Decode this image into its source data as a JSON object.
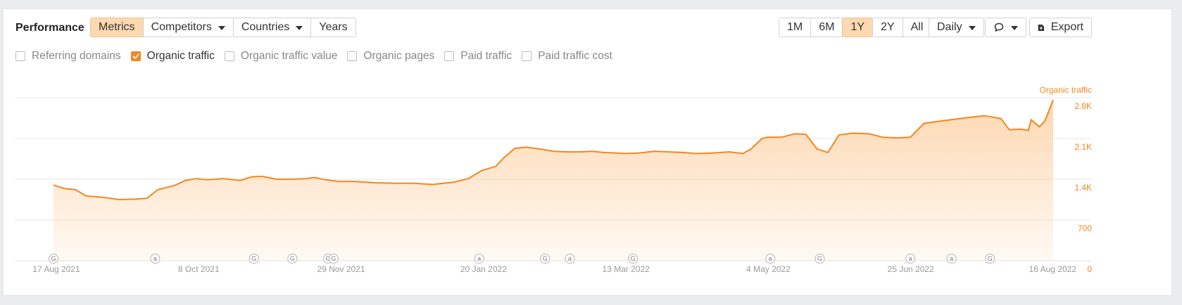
{
  "header": {
    "title": "Performance",
    "filters": [
      {
        "label": "Metrics",
        "active": true,
        "dropdown": false
      },
      {
        "label": "Competitors",
        "active": false,
        "dropdown": true
      },
      {
        "label": "Countries",
        "active": false,
        "dropdown": true
      },
      {
        "label": "Years",
        "active": false,
        "dropdown": false
      }
    ],
    "ranges": [
      {
        "label": "1M",
        "active": false
      },
      {
        "label": "6M",
        "active": false
      },
      {
        "label": "1Y",
        "active": true
      },
      {
        "label": "2Y",
        "active": false
      },
      {
        "label": "All",
        "active": false
      }
    ],
    "granularity": "Daily",
    "comments_icon": "speech-bubble-icon",
    "export_label": "Export",
    "export_icon": "download-icon"
  },
  "metrics": [
    {
      "label": "Referring domains",
      "checked": false
    },
    {
      "label": "Organic traffic",
      "checked": true
    },
    {
      "label": "Organic traffic value",
      "checked": false
    },
    {
      "label": "Organic pages",
      "checked": false
    },
    {
      "label": "Paid traffic",
      "checked": false
    },
    {
      "label": "Paid traffic cost",
      "checked": false
    }
  ],
  "colors": {
    "accent": "#f5861f",
    "active_bg": "#fdd9b0",
    "grid": "#e6e6e6"
  },
  "chart_data": {
    "type": "area",
    "series": [
      {
        "name": "Organic traffic",
        "color": "#f5861f"
      }
    ],
    "y_axis_title": "Organic traffic",
    "y_ticks": [
      "2.8K",
      "2.1K",
      "1.4K",
      "700",
      "0"
    ],
    "ylim": [
      0,
      2800
    ],
    "x_ticks": [
      "17 Aug 2021",
      "8 Oct 2021",
      "29 Nov 2021",
      "20 Jan 2022",
      "13 Mar 2022",
      "4 May 2022",
      "25 Jun 2022",
      "16 Aug 2022"
    ],
    "points": [
      {
        "x": "2021-08-17",
        "y": 1300
      },
      {
        "x": "2021-08-21",
        "y": 1240
      },
      {
        "x": "2021-08-25",
        "y": 1220
      },
      {
        "x": "2021-08-29",
        "y": 1110
      },
      {
        "x": "2021-09-04",
        "y": 1090
      },
      {
        "x": "2021-09-10",
        "y": 1050
      },
      {
        "x": "2021-09-16",
        "y": 1060
      },
      {
        "x": "2021-09-20",
        "y": 1070
      },
      {
        "x": "2021-09-24",
        "y": 1220
      },
      {
        "x": "2021-09-30",
        "y": 1290
      },
      {
        "x": "2021-10-04",
        "y": 1380
      },
      {
        "x": "2021-10-08",
        "y": 1410
      },
      {
        "x": "2021-10-12",
        "y": 1390
      },
      {
        "x": "2021-10-18",
        "y": 1410
      },
      {
        "x": "2021-10-24",
        "y": 1380
      },
      {
        "x": "2021-10-28",
        "y": 1440
      },
      {
        "x": "2021-11-01",
        "y": 1450
      },
      {
        "x": "2021-11-06",
        "y": 1400
      },
      {
        "x": "2021-11-11",
        "y": 1400
      },
      {
        "x": "2021-11-17",
        "y": 1410
      },
      {
        "x": "2021-11-20",
        "y": 1430
      },
      {
        "x": "2021-11-24",
        "y": 1390
      },
      {
        "x": "2021-11-29",
        "y": 1360
      },
      {
        "x": "2021-12-05",
        "y": 1360
      },
      {
        "x": "2021-12-12",
        "y": 1340
      },
      {
        "x": "2021-12-19",
        "y": 1330
      },
      {
        "x": "2021-12-26",
        "y": 1330
      },
      {
        "x": "2022-01-02",
        "y": 1310
      },
      {
        "x": "2022-01-06",
        "y": 1330
      },
      {
        "x": "2022-01-10",
        "y": 1350
      },
      {
        "x": "2022-01-15",
        "y": 1410
      },
      {
        "x": "2022-01-20",
        "y": 1550
      },
      {
        "x": "2022-01-25",
        "y": 1620
      },
      {
        "x": "2022-01-28",
        "y": 1770
      },
      {
        "x": "2022-02-01",
        "y": 1930
      },
      {
        "x": "2022-02-05",
        "y": 1950
      },
      {
        "x": "2022-02-10",
        "y": 1920
      },
      {
        "x": "2022-02-15",
        "y": 1880
      },
      {
        "x": "2022-02-20",
        "y": 1870
      },
      {
        "x": "2022-02-25",
        "y": 1870
      },
      {
        "x": "2022-03-01",
        "y": 1880
      },
      {
        "x": "2022-03-05",
        "y": 1860
      },
      {
        "x": "2022-03-10",
        "y": 1850
      },
      {
        "x": "2022-03-13",
        "y": 1840
      },
      {
        "x": "2022-03-18",
        "y": 1850
      },
      {
        "x": "2022-03-24",
        "y": 1880
      },
      {
        "x": "2022-03-29",
        "y": 1870
      },
      {
        "x": "2022-04-03",
        "y": 1860
      },
      {
        "x": "2022-04-08",
        "y": 1840
      },
      {
        "x": "2022-04-14",
        "y": 1850
      },
      {
        "x": "2022-04-20",
        "y": 1870
      },
      {
        "x": "2022-04-25",
        "y": 1840
      },
      {
        "x": "2022-04-28",
        "y": 1920
      },
      {
        "x": "2022-05-02",
        "y": 2100
      },
      {
        "x": "2022-05-04",
        "y": 2120
      },
      {
        "x": "2022-05-09",
        "y": 2120
      },
      {
        "x": "2022-05-14",
        "y": 2180
      },
      {
        "x": "2022-05-18",
        "y": 2170
      },
      {
        "x": "2022-05-22",
        "y": 1920
      },
      {
        "x": "2022-05-26",
        "y": 1860
      },
      {
        "x": "2022-05-30",
        "y": 2160
      },
      {
        "x": "2022-06-04",
        "y": 2190
      },
      {
        "x": "2022-06-10",
        "y": 2180
      },
      {
        "x": "2022-06-15",
        "y": 2120
      },
      {
        "x": "2022-06-20",
        "y": 2110
      },
      {
        "x": "2022-06-25",
        "y": 2120
      },
      {
        "x": "2022-06-30",
        "y": 2360
      },
      {
        "x": "2022-07-08",
        "y": 2410
      },
      {
        "x": "2022-07-16",
        "y": 2460
      },
      {
        "x": "2022-07-22",
        "y": 2490
      },
      {
        "x": "2022-07-28",
        "y": 2440
      },
      {
        "x": "2022-07-31",
        "y": 2250
      },
      {
        "x": "2022-08-04",
        "y": 2260
      },
      {
        "x": "2022-08-07",
        "y": 2240
      },
      {
        "x": "2022-08-08",
        "y": 2420
      },
      {
        "x": "2022-08-11",
        "y": 2300
      },
      {
        "x": "2022-08-13",
        "y": 2400
      },
      {
        "x": "2022-08-16",
        "y": 2760
      }
    ],
    "event_markers": [
      {
        "x": "2021-08-17",
        "label": "G"
      },
      {
        "x": "2021-09-23",
        "label": "a"
      },
      {
        "x": "2021-10-29",
        "label": "G"
      },
      {
        "x": "2021-11-12",
        "label": "G"
      },
      {
        "x": "2021-11-25",
        "label": "G"
      },
      {
        "x": "2021-11-27",
        "label": "G"
      },
      {
        "x": "2022-01-19",
        "label": "a"
      },
      {
        "x": "2022-02-12",
        "label": "G"
      },
      {
        "x": "2022-02-21",
        "label": "a"
      },
      {
        "x": "2022-03-16",
        "label": "G"
      },
      {
        "x": "2022-05-05",
        "label": "a"
      },
      {
        "x": "2022-05-23",
        "label": "G"
      },
      {
        "x": "2022-06-25",
        "label": "a"
      },
      {
        "x": "2022-07-10",
        "label": "a"
      },
      {
        "x": "2022-07-24",
        "label": "G"
      }
    ],
    "grid": true,
    "y_axis_position": "right"
  }
}
